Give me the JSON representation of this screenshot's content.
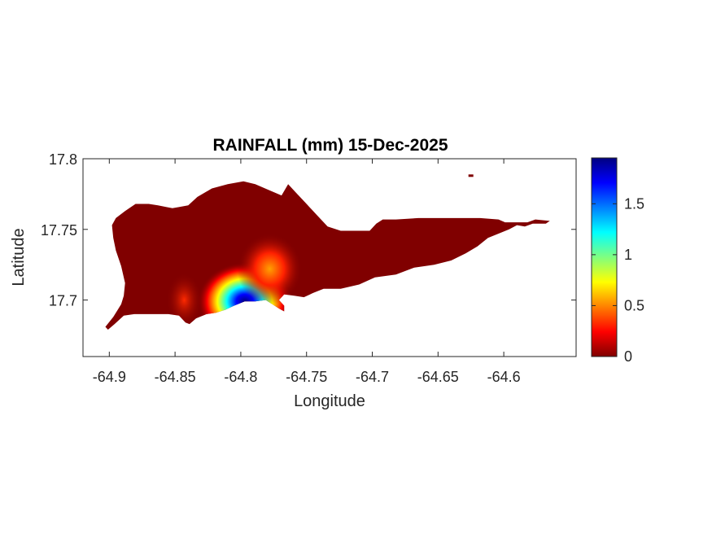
{
  "title": "RAINFALL (mm) 15-Dec-2025",
  "chart_data": {
    "type": "heatmap",
    "title": "RAINFALL (mm) 15-Dec-2025",
    "xlabel": "Longitude",
    "ylabel": "Latitude",
    "xlim": [
      -64.92,
      -64.545
    ],
    "ylim": [
      17.66,
      17.8
    ],
    "xticks": [
      -64.9,
      -64.85,
      -64.8,
      -64.75,
      -64.7,
      -64.65,
      -64.6
    ],
    "xtick_labels": [
      "-64.9",
      "-64.85",
      "-64.8",
      "-64.75",
      "-64.7",
      "-64.65",
      "-64.6"
    ],
    "yticks": [
      17.7,
      17.75,
      17.8
    ],
    "ytick_labels": [
      "17.7",
      "17.75",
      "17.8"
    ],
    "colorbar": {
      "colormap": "jet",
      "range": [
        0,
        1.95
      ],
      "ticks": [
        0,
        0.5,
        1,
        1.5
      ],
      "tick_labels": [
        "0",
        "0.5",
        "1",
        "1.5"
      ]
    },
    "background_value": 0,
    "hotspots": [
      {
        "lon": -64.797,
        "lat": 17.699,
        "value": 1.95
      },
      {
        "lon": -64.778,
        "lat": 17.722,
        "value": 0.45
      },
      {
        "lon": -64.843,
        "lat": 17.7,
        "value": 0.2
      }
    ],
    "island_outline": [
      [
        -64.901,
        17.679
      ],
      [
        -64.896,
        17.683
      ],
      [
        -64.889,
        17.689
      ],
      [
        -64.881,
        17.69
      ],
      [
        -64.874,
        17.69
      ],
      [
        -64.865,
        17.69
      ],
      [
        -64.855,
        17.69
      ],
      [
        -64.847,
        17.689
      ],
      [
        -64.842,
        17.684
      ],
      [
        -64.839,
        17.683
      ],
      [
        -64.834,
        17.687
      ],
      [
        -64.826,
        17.69
      ],
      [
        -64.819,
        17.691
      ],
      [
        -64.812,
        17.693
      ],
      [
        -64.805,
        17.696
      ],
      [
        -64.797,
        17.699
      ],
      [
        -64.789,
        17.699
      ],
      [
        -64.781,
        17.7
      ],
      [
        -64.776,
        17.697
      ],
      [
        -64.771,
        17.694
      ],
      [
        -64.767,
        17.692
      ],
      [
        -64.767,
        17.696
      ],
      [
        -64.771,
        17.7
      ],
      [
        -64.767,
        17.704
      ],
      [
        -64.759,
        17.703
      ],
      [
        -64.752,
        17.702
      ],
      [
        -64.745,
        17.705
      ],
      [
        -64.737,
        17.708
      ],
      [
        -64.724,
        17.708
      ],
      [
        -64.71,
        17.711
      ],
      [
        -64.698,
        17.716
      ],
      [
        -64.682,
        17.718
      ],
      [
        -64.668,
        17.723
      ],
      [
        -64.653,
        17.725
      ],
      [
        -64.64,
        17.728
      ],
      [
        -64.629,
        17.733
      ],
      [
        -64.62,
        17.738
      ],
      [
        -64.612,
        17.744
      ],
      [
        -64.604,
        17.747
      ],
      [
        -64.596,
        17.75
      ],
      [
        -64.59,
        17.753
      ],
      [
        -64.584,
        17.752
      ],
      [
        -64.578,
        17.754
      ],
      [
        -64.568,
        17.754
      ],
      [
        -64.565,
        17.756
      ],
      [
        -64.576,
        17.757
      ],
      [
        -64.582,
        17.755
      ],
      [
        -64.588,
        17.755
      ],
      [
        -64.599,
        17.755
      ],
      [
        -64.604,
        17.757
      ],
      [
        -64.618,
        17.758
      ],
      [
        -64.634,
        17.758
      ],
      [
        -64.648,
        17.758
      ],
      [
        -64.665,
        17.758
      ],
      [
        -64.682,
        17.757
      ],
      [
        -64.692,
        17.757
      ],
      [
        -64.697,
        17.754
      ],
      [
        -64.702,
        17.749
      ],
      [
        -64.713,
        17.749
      ],
      [
        -64.724,
        17.749
      ],
      [
        -64.734,
        17.752
      ],
      [
        -64.742,
        17.76
      ],
      [
        -64.751,
        17.769
      ],
      [
        -64.758,
        17.776
      ],
      [
        -64.764,
        17.782
      ],
      [
        -64.769,
        17.774
      ],
      [
        -64.779,
        17.778
      ],
      [
        -64.789,
        17.782
      ],
      [
        -64.798,
        17.784
      ],
      [
        -64.81,
        17.782
      ],
      [
        -64.822,
        17.779
      ],
      [
        -64.833,
        17.773
      ],
      [
        -64.84,
        17.767
      ],
      [
        -64.852,
        17.765
      ],
      [
        -64.863,
        17.767
      ],
      [
        -64.87,
        17.768
      ],
      [
        -64.88,
        17.768
      ],
      [
        -64.888,
        17.763
      ],
      [
        -64.895,
        17.758
      ],
      [
        -64.898,
        17.753
      ],
      [
        -64.897,
        17.744
      ],
      [
        -64.895,
        17.735
      ],
      [
        -64.891,
        17.724
      ],
      [
        -64.888,
        17.712
      ],
      [
        -64.889,
        17.703
      ],
      [
        -64.891,
        17.697
      ],
      [
        -64.897,
        17.688
      ],
      [
        -64.903,
        17.681
      ]
    ],
    "small_island": [
      -64.625,
      17.788
    ]
  }
}
